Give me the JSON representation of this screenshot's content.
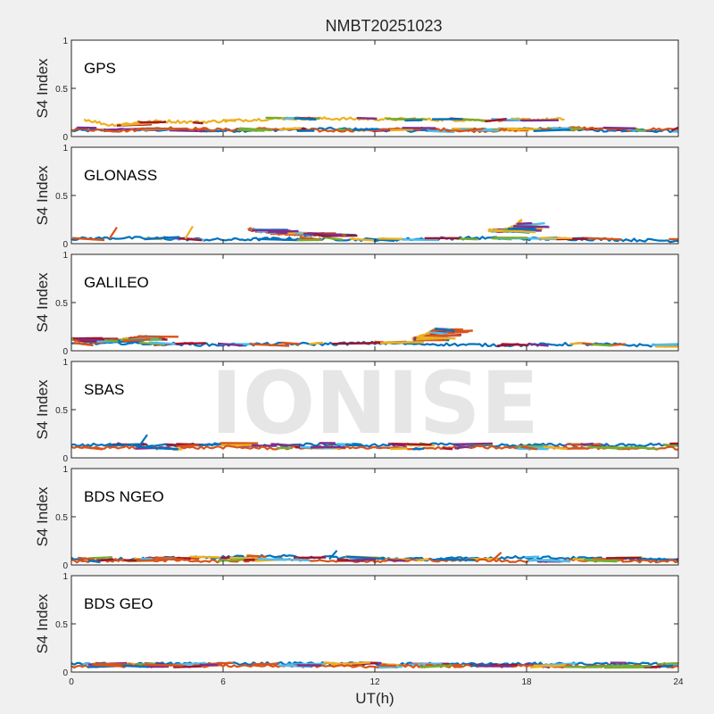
{
  "watermark": "IONISE",
  "chart_data": {
    "type": "scatter",
    "title": "NMBT20251023",
    "xlabel": "UT(h)",
    "ylabel": "S4 Index",
    "xlim": [
      0,
      24
    ],
    "ylim": [
      0,
      1
    ],
    "xticks": [
      "0",
      "6",
      "12",
      "18",
      "24"
    ],
    "yticks": [
      "0",
      "0.5",
      "1"
    ],
    "grid": false,
    "series_colors": [
      "#0072BD",
      "#D95319",
      "#EDB120",
      "#7E2F8E",
      "#77AC30",
      "#4DBEEE",
      "#A2142F"
    ],
    "panels": [
      {
        "name": "GPS",
        "typical_s4": 0.07,
        "series": [
          {
            "x": [
              0,
              2,
              4,
              6,
              8,
              10,
              12,
              14,
              16,
              18,
              20,
              22,
              24
            ],
            "y": [
              0.06,
              0.07,
              0.07,
              0.06,
              0.07,
              0.08,
              0.07,
              0.06,
              0.07,
              0.08,
              0.07,
              0.06,
              0.06
            ]
          },
          {
            "x": [
              0,
              2,
              4,
              6,
              8,
              10,
              12,
              14,
              16,
              18,
              20,
              22,
              24
            ],
            "y": [
              0.08,
              0.06,
              0.09,
              0.07,
              0.08,
              0.06,
              0.07,
              0.08,
              0.06,
              0.07,
              0.09,
              0.07,
              0.08
            ]
          },
          {
            "x": [
              0.5,
              1.5,
              3.5,
              5,
              8.5,
              16.5,
              19.5
            ],
            "y": [
              0.18,
              0.12,
              0.16,
              0.15,
              0.19,
              0.17,
              0.18
            ]
          }
        ]
      },
      {
        "name": "GLONASS",
        "typical_s4": 0.05,
        "series": [
          {
            "x": [
              0,
              2,
              4,
              6,
              8,
              10,
              12,
              14,
              16,
              18,
              20,
              22,
              24
            ],
            "y": [
              0.05,
              0.06,
              0.05,
              0.04,
              0.05,
              0.05,
              0.04,
              0.05,
              0.06,
              0.05,
              0.05,
              0.04,
              0.03
            ]
          },
          {
            "x": [
              7,
              8,
              9,
              10
            ],
            "y": [
              0.15,
              0.11,
              0.1,
              0.09
            ]
          },
          {
            "x": [
              16.5,
              17,
              17.5,
              17.8
            ],
            "y": [
              0.14,
              0.13,
              0.17,
              0.24
            ]
          },
          {
            "x": [
              1.8,
              4.8
            ],
            "y": [
              0.17,
              0.18
            ]
          }
        ]
      },
      {
        "name": "GALILEO",
        "typical_s4": 0.07,
        "series": [
          {
            "x": [
              0,
              2,
              4,
              6,
              8,
              10,
              12,
              14,
              16,
              18,
              20,
              22,
              24
            ],
            "y": [
              0.07,
              0.08,
              0.07,
              0.06,
              0.07,
              0.07,
              0.08,
              0.07,
              0.06,
              0.06,
              0.07,
              0.06,
              0.05
            ]
          },
          {
            "x": [
              0,
              1,
              2,
              2.5,
              3
            ],
            "y": [
              0.12,
              0.09,
              0.11,
              0.13,
              0.15
            ]
          },
          {
            "x": [
              13.5,
              14,
              14.4
            ],
            "y": [
              0.12,
              0.16,
              0.22
            ]
          }
        ]
      },
      {
        "name": "SBAS",
        "typical_s4": 0.13,
        "series": [
          {
            "x": [
              0,
              2,
              4,
              6,
              8,
              10,
              12,
              14,
              16,
              18,
              20,
              22,
              24
            ],
            "y": [
              0.13,
              0.14,
              0.13,
              0.14,
              0.13,
              0.14,
              0.13,
              0.14,
              0.13,
              0.13,
              0.14,
              0.13,
              0.14
            ]
          },
          {
            "x": [
              0,
              2,
              4,
              6,
              8,
              10,
              12,
              14,
              16,
              18,
              20,
              22,
              24
            ],
            "y": [
              0.1,
              0.11,
              0.1,
              0.11,
              0.1,
              0.11,
              0.1,
              0.1,
              0.11,
              0.1,
              0.11,
              0.1,
              0.1
            ]
          },
          {
            "x": [
              3
            ],
            "y": [
              0.24
            ]
          }
        ]
      },
      {
        "name": "BDS NGEO",
        "typical_s4": 0.06,
        "series": [
          {
            "x": [
              0,
              2,
              4,
              6,
              8,
              10,
              12,
              14,
              16,
              18,
              20,
              22,
              24
            ],
            "y": [
              0.07,
              0.06,
              0.07,
              0.08,
              0.09,
              0.08,
              0.07,
              0.06,
              0.07,
              0.08,
              0.07,
              0.06,
              0.05
            ]
          },
          {
            "x": [
              0,
              2,
              4,
              6,
              8,
              10,
              12,
              14,
              16,
              18,
              20,
              22,
              24
            ],
            "y": [
              0.04,
              0.05,
              0.05,
              0.04,
              0.06,
              0.05,
              0.04,
              0.05,
              0.05,
              0.04,
              0.05,
              0.04,
              0.04
            ]
          },
          {
            "x": [
              10.5,
              17
            ],
            "y": [
              0.15,
              0.13
            ]
          }
        ]
      },
      {
        "name": "BDS GEO",
        "typical_s4": 0.08,
        "series": [
          {
            "x": [
              0,
              4,
              8,
              12,
              16,
              20,
              24
            ],
            "y": [
              0.08,
              0.085,
              0.09,
              0.085,
              0.08,
              0.085,
              0.08
            ]
          },
          {
            "x": [
              0,
              4,
              8,
              12,
              16,
              20,
              24
            ],
            "y": [
              0.06,
              0.065,
              0.065,
              0.06,
              0.065,
              0.06,
              0.06
            ]
          }
        ]
      }
    ]
  }
}
